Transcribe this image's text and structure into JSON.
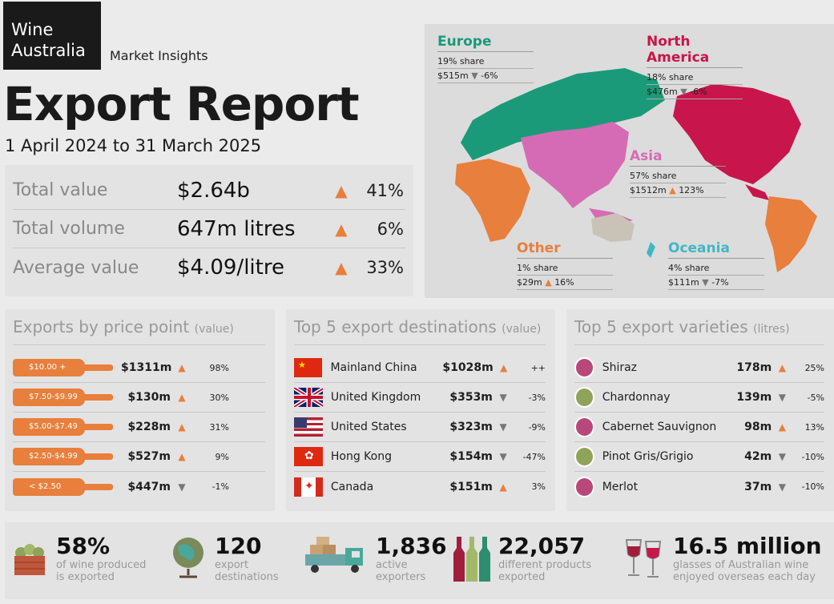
{
  "brand": {
    "line1": "Wine",
    "line2": "Australia",
    "subtitle": "Market Insights"
  },
  "title": "Export Report",
  "period": "1 April 2024 to 31 March 2025",
  "kpis": [
    {
      "label": "Total value",
      "value": "$2.64b",
      "direction": "up",
      "pct": "41%"
    },
    {
      "label": "Total volume",
      "value": "647m litres",
      "direction": "up",
      "pct": "6%"
    },
    {
      "label": "Average value",
      "value": "$4.09/litre",
      "direction": "up",
      "pct": "33%"
    }
  ],
  "regions": {
    "europe": {
      "name": "Europe",
      "share": "19% share",
      "value": "$515m",
      "direction": "down",
      "pct": "-6%",
      "color": "#1a9a78"
    },
    "north_america": {
      "name": "North America",
      "share": "18% share",
      "value": "$476m",
      "direction": "down",
      "pct": "-6%",
      "color": "#c8154c"
    },
    "asia": {
      "name": "Asia",
      "share": "57% share",
      "value": "$1512m",
      "direction": "up",
      "pct": "123%",
      "color": "#d66bb5"
    },
    "other": {
      "name": "Other",
      "share": "1% share",
      "value": "$29m",
      "direction": "up",
      "pct": "16%",
      "color": "#e87f3c"
    },
    "oceania": {
      "name": "Oceania",
      "share": "4% share",
      "value": "$111m",
      "direction": "down",
      "pct": "-7%",
      "color": "#41b7c4"
    }
  },
  "price_points": {
    "title": "Exports by price point",
    "unit": "(value)",
    "rows": [
      {
        "band": "$10.00 +",
        "value": "$1311m",
        "direction": "up",
        "pct": "98%"
      },
      {
        "band": "$7.50-$9.99",
        "value": "$130m",
        "direction": "up",
        "pct": "30%"
      },
      {
        "band": "$5.00-$7.49",
        "value": "$228m",
        "direction": "up",
        "pct": "31%"
      },
      {
        "band": "$2.50-$4.99",
        "value": "$527m",
        "direction": "up",
        "pct": "9%"
      },
      {
        "band": "< $2.50",
        "value": "$447m",
        "direction": "down",
        "pct": "-1%"
      }
    ]
  },
  "destinations": {
    "title": "Top 5 export destinations",
    "unit": "(value)",
    "rows": [
      {
        "country": "Mainland China",
        "flag": "china-flag-icon",
        "value": "$1028m",
        "direction": "up",
        "pct": "++"
      },
      {
        "country": "United Kingdom",
        "flag": "uk-flag-icon",
        "value": "$353m",
        "direction": "down",
        "pct": "-3%"
      },
      {
        "country": "United States",
        "flag": "us-flag-icon",
        "value": "$323m",
        "direction": "down",
        "pct": "-9%"
      },
      {
        "country": "Hong Kong",
        "flag": "hong-kong-flag-icon",
        "value": "$154m",
        "direction": "down",
        "pct": "-47%"
      },
      {
        "country": "Canada",
        "flag": "canada-flag-icon",
        "value": "$151m",
        "direction": "up",
        "pct": "3%"
      }
    ]
  },
  "varieties": {
    "title": "Top 5 export varieties",
    "unit": "(litres)",
    "rows": [
      {
        "name": "Shiraz",
        "grape_color": "#b8487a",
        "value": "178m",
        "direction": "up",
        "pct": "25%"
      },
      {
        "name": "Chardonnay",
        "grape_color": "#8fa35a",
        "value": "139m",
        "direction": "down",
        "pct": "-5%"
      },
      {
        "name": "Cabernet Sauvignon",
        "grape_color": "#b8487a",
        "value": "98m",
        "direction": "up",
        "pct": "13%"
      },
      {
        "name": "Pinot Gris/Grigio",
        "grape_color": "#8fa35a",
        "value": "42m",
        "direction": "down",
        "pct": "-10%"
      },
      {
        "name": "Merlot",
        "grape_color": "#b8487a",
        "value": "37m",
        "direction": "down",
        "pct": "-10%"
      }
    ]
  },
  "stats": [
    {
      "icon": "grape-crate-icon",
      "number": "58%",
      "desc1": "of wine produced",
      "desc2": "is exported"
    },
    {
      "icon": "globe-icon",
      "number": "120",
      "desc1": "export",
      "desc2": "destinations"
    },
    {
      "icon": "delivery-truck-icon",
      "number": "1,836",
      "desc1": "active",
      "desc2": "exporters"
    },
    {
      "icon": "wine-bottles-icon",
      "number": "22,057",
      "desc1": "different products",
      "desc2": "exported"
    },
    {
      "icon": "wine-glasses-icon",
      "number": "16.5 million",
      "desc1": "glasses of Australian wine",
      "desc2": "enjoyed overseas each day"
    }
  ],
  "colors": {
    "accent_orange": "#e87f3c",
    "down_grey": "#777777",
    "panel_bg": "#e3e3e3",
    "page_bg": "#ebebeb"
  }
}
